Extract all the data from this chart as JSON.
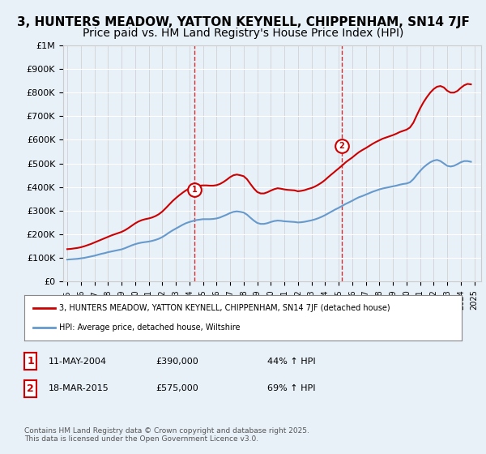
{
  "title": "3, HUNTERS MEADOW, YATTON KEYNELL, CHIPPENHAM, SN14 7JF",
  "subtitle": "Price paid vs. HM Land Registry's House Price Index (HPI)",
  "title_fontsize": 11,
  "subtitle_fontsize": 10,
  "background_color": "#e8f0f8",
  "plot_bg_color": "#e8f0f8",
  "ylim": [
    0,
    1000000
  ],
  "yticks": [
    0,
    100000,
    200000,
    300000,
    400000,
    500000,
    600000,
    700000,
    800000,
    900000,
    1000000
  ],
  "ytick_labels": [
    "£0",
    "£100K",
    "£200K",
    "£300K",
    "£400K",
    "£500K",
    "£600K",
    "£700K",
    "£800K",
    "£900K",
    "£1M"
  ],
  "xlim_start": 1995,
  "xlim_end": 2025.5,
  "xtick_years": [
    1995,
    1996,
    1997,
    1998,
    1999,
    2000,
    2001,
    2002,
    2003,
    2004,
    2005,
    2006,
    2007,
    2008,
    2009,
    2010,
    2011,
    2012,
    2013,
    2014,
    2015,
    2016,
    2017,
    2018,
    2019,
    2020,
    2021,
    2022,
    2023,
    2024,
    2025
  ],
  "sale1_x": 2004.36,
  "sale1_y": 390000,
  "sale1_label": "1",
  "sale2_x": 2015.21,
  "sale2_y": 575000,
  "sale2_label": "2",
  "sale_color": "#cc0000",
  "hpi_color": "#6699cc",
  "vline_color": "#cc0000",
  "legend_property": "3, HUNTERS MEADOW, YATTON KEYNELL, CHIPPENHAM, SN14 7JF (detached house)",
  "legend_hpi": "HPI: Average price, detached house, Wiltshire",
  "table_rows": [
    {
      "num": "1",
      "date": "11-MAY-2004",
      "price": "£390,000",
      "hpi": "44% ↑ HPI"
    },
    {
      "num": "2",
      "date": "18-MAR-2015",
      "price": "£575,000",
      "hpi": "69% ↑ HPI"
    }
  ],
  "footer": "Contains HM Land Registry data © Crown copyright and database right 2025.\nThis data is licensed under the Open Government Licence v3.0.",
  "hpi_data_x": [
    1995.0,
    1995.25,
    1995.5,
    1995.75,
    1996.0,
    1996.25,
    1996.5,
    1996.75,
    1997.0,
    1997.25,
    1997.5,
    1997.75,
    1998.0,
    1998.25,
    1998.5,
    1998.75,
    1999.0,
    1999.25,
    1999.5,
    1999.75,
    2000.0,
    2000.25,
    2000.5,
    2000.75,
    2001.0,
    2001.25,
    2001.5,
    2001.75,
    2002.0,
    2002.25,
    2002.5,
    2002.75,
    2003.0,
    2003.25,
    2003.5,
    2003.75,
    2004.0,
    2004.25,
    2004.5,
    2004.75,
    2005.0,
    2005.25,
    2005.5,
    2005.75,
    2006.0,
    2006.25,
    2006.5,
    2006.75,
    2007.0,
    2007.25,
    2007.5,
    2007.75,
    2008.0,
    2008.25,
    2008.5,
    2008.75,
    2009.0,
    2009.25,
    2009.5,
    2009.75,
    2010.0,
    2010.25,
    2010.5,
    2010.75,
    2011.0,
    2011.25,
    2011.5,
    2011.75,
    2012.0,
    2012.25,
    2012.5,
    2012.75,
    2013.0,
    2013.25,
    2013.5,
    2013.75,
    2014.0,
    2014.25,
    2014.5,
    2014.75,
    2015.0,
    2015.25,
    2015.5,
    2015.75,
    2016.0,
    2016.25,
    2016.5,
    2016.75,
    2017.0,
    2017.25,
    2017.5,
    2017.75,
    2018.0,
    2018.25,
    2018.5,
    2018.75,
    2019.0,
    2019.25,
    2019.5,
    2019.75,
    2020.0,
    2020.25,
    2020.5,
    2020.75,
    2021.0,
    2021.25,
    2021.5,
    2021.75,
    2022.0,
    2022.25,
    2022.5,
    2022.75,
    2023.0,
    2023.25,
    2023.5,
    2023.75,
    2024.0,
    2024.25,
    2024.5,
    2024.75
  ],
  "hpi_data_y": [
    93000,
    94000,
    95000,
    96000,
    98000,
    100000,
    103000,
    106000,
    109000,
    113000,
    117000,
    120000,
    124000,
    127000,
    130000,
    133000,
    136000,
    141000,
    147000,
    153000,
    158000,
    162000,
    165000,
    167000,
    169000,
    172000,
    176000,
    181000,
    188000,
    197000,
    207000,
    216000,
    224000,
    232000,
    240000,
    247000,
    252000,
    256000,
    260000,
    262000,
    264000,
    264000,
    264000,
    265000,
    267000,
    271000,
    277000,
    283000,
    290000,
    295000,
    297000,
    295000,
    292000,
    283000,
    270000,
    258000,
    248000,
    244000,
    244000,
    247000,
    252000,
    256000,
    258000,
    257000,
    255000,
    254000,
    253000,
    252000,
    250000,
    251000,
    253000,
    256000,
    259000,
    263000,
    268000,
    274000,
    281000,
    289000,
    297000,
    305000,
    312000,
    320000,
    328000,
    335000,
    342000,
    350000,
    357000,
    362000,
    368000,
    374000,
    380000,
    385000,
    390000,
    394000,
    397000,
    400000,
    403000,
    406000,
    410000,
    413000,
    415000,
    420000,
    433000,
    451000,
    468000,
    483000,
    495000,
    505000,
    512000,
    515000,
    510000,
    500000,
    490000,
    487000,
    490000,
    497000,
    505000,
    510000,
    510000,
    507000
  ],
  "property_data_x": [
    1995.0,
    1995.25,
    1995.5,
    1995.75,
    1996.0,
    1996.25,
    1996.5,
    1996.75,
    1997.0,
    1997.25,
    1997.5,
    1997.75,
    1998.0,
    1998.25,
    1998.5,
    1998.75,
    1999.0,
    1999.25,
    1999.5,
    1999.75,
    2000.0,
    2000.25,
    2000.5,
    2000.75,
    2001.0,
    2001.25,
    2001.5,
    2001.75,
    2002.0,
    2002.25,
    2002.5,
    2002.75,
    2003.0,
    2003.25,
    2003.5,
    2003.75,
    2004.0,
    2004.25,
    2004.5,
    2004.75,
    2005.0,
    2005.25,
    2005.5,
    2005.75,
    2006.0,
    2006.25,
    2006.5,
    2006.75,
    2007.0,
    2007.25,
    2007.5,
    2007.75,
    2008.0,
    2008.25,
    2008.5,
    2008.75,
    2009.0,
    2009.25,
    2009.5,
    2009.75,
    2010.0,
    2010.25,
    2010.5,
    2010.75,
    2011.0,
    2011.25,
    2011.5,
    2011.75,
    2012.0,
    2012.25,
    2012.5,
    2012.75,
    2013.0,
    2013.25,
    2013.5,
    2013.75,
    2014.0,
    2014.25,
    2014.5,
    2014.75,
    2015.0,
    2015.25,
    2015.5,
    2015.75,
    2016.0,
    2016.25,
    2016.5,
    2016.75,
    2017.0,
    2017.25,
    2017.5,
    2017.75,
    2018.0,
    2018.25,
    2018.5,
    2018.75,
    2019.0,
    2019.25,
    2019.5,
    2019.75,
    2020.0,
    2020.25,
    2020.5,
    2020.75,
    2021.0,
    2021.25,
    2021.5,
    2021.75,
    2022.0,
    2022.25,
    2022.5,
    2022.75,
    2023.0,
    2023.25,
    2023.5,
    2023.75,
    2024.0,
    2024.25,
    2024.5,
    2024.75
  ],
  "property_data_y": [
    137000,
    138000,
    140000,
    142000,
    145000,
    149000,
    154000,
    159000,
    165000,
    171000,
    177000,
    183000,
    189000,
    195000,
    200000,
    205000,
    210000,
    217000,
    226000,
    236000,
    246000,
    254000,
    260000,
    264000,
    267000,
    271000,
    277000,
    285000,
    296000,
    310000,
    325000,
    340000,
    353000,
    365000,
    376000,
    386000,
    394000,
    400000,
    404000,
    406000,
    407000,
    407000,
    406000,
    406000,
    408000,
    413000,
    421000,
    431000,
    442000,
    450000,
    453000,
    450000,
    446000,
    433000,
    413000,
    394000,
    379000,
    373000,
    373000,
    378000,
    385000,
    391000,
    395000,
    393000,
    390000,
    388000,
    387000,
    386000,
    382000,
    384000,
    387000,
    392000,
    396000,
    402000,
    410000,
    419000,
    430000,
    443000,
    455000,
    467000,
    479000,
    491000,
    504000,
    515000,
    525000,
    537000,
    548000,
    557000,
    565000,
    574000,
    583000,
    591000,
    598000,
    605000,
    610000,
    615000,
    620000,
    626000,
    633000,
    638000,
    643000,
    652000,
    672000,
    703000,
    733000,
    759000,
    781000,
    800000,
    815000,
    825000,
    828000,
    822000,
    808000,
    800000,
    800000,
    807000,
    820000,
    831000,
    837000,
    835000
  ]
}
